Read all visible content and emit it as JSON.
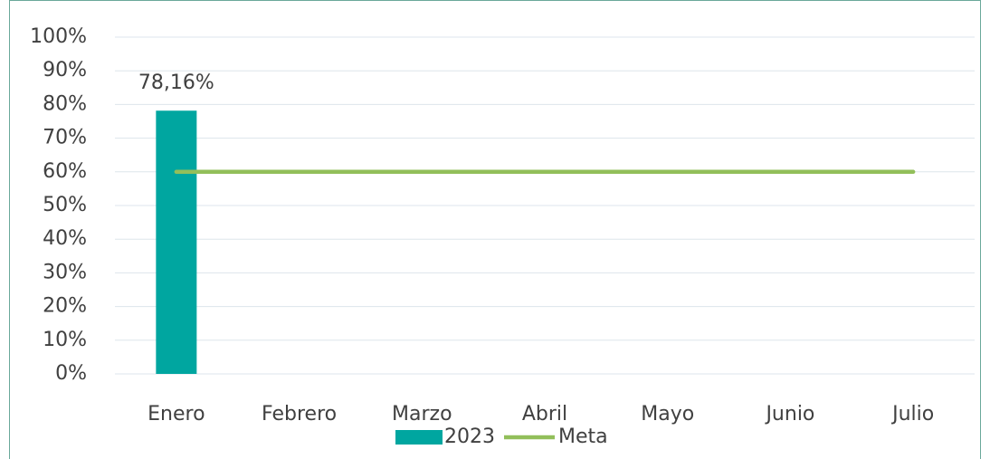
{
  "chart_data": {
    "type": "bar",
    "categories": [
      "Enero",
      "Febrero",
      "Marzo",
      "Abril",
      "Mayo",
      "Junio",
      "Julio"
    ],
    "series": [
      {
        "name": "2023",
        "type": "bar",
        "color": "#00a6a0",
        "values": [
          78.16,
          null,
          null,
          null,
          null,
          null,
          null
        ],
        "value_labels": [
          "78,16%",
          null,
          null,
          null,
          null,
          null,
          null
        ]
      },
      {
        "name": "Meta",
        "type": "line",
        "color": "#92bf5a",
        "values": [
          60,
          60,
          60,
          60,
          60,
          60,
          60
        ]
      }
    ],
    "ylim": [
      0,
      100
    ],
    "yticks": [
      {
        "value": 0,
        "label": "0%"
      },
      {
        "value": 10,
        "label": "10%"
      },
      {
        "value": 20,
        "label": "20%"
      },
      {
        "value": 30,
        "label": "30%"
      },
      {
        "value": 40,
        "label": "40%"
      },
      {
        "value": 50,
        "label": "50%"
      },
      {
        "value": 60,
        "label": "60%"
      },
      {
        "value": 70,
        "label": "70%"
      },
      {
        "value": 80,
        "label": "80%"
      },
      {
        "value": 90,
        "label": "90%"
      },
      {
        "value": 100,
        "label": "100%"
      }
    ],
    "grid": true,
    "legend": "bottom"
  }
}
